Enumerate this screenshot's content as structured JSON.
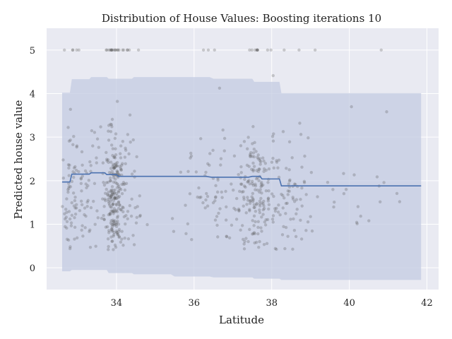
{
  "chart_data": {
    "type": "scatter",
    "title": "Distribution of House Values: Boosting iterations 10",
    "xlabel": "Latitude",
    "ylabel": "Predicted house value",
    "xlim": [
      32.2,
      42.3
    ],
    "ylim": [
      -0.5,
      5.5
    ],
    "xticks": [
      34,
      36,
      38,
      40,
      42
    ],
    "yticks": [
      0,
      1,
      2,
      3,
      4,
      5
    ],
    "grid": true,
    "colors": {
      "background": "#e9eaf2",
      "grid": "#ffffff",
      "band": "#c3cbe2",
      "line": "#4c72b0",
      "points": "#555555"
    },
    "prediction_line": {
      "x": [
        32.6,
        32.8,
        32.85,
        33.3,
        33.35,
        33.7,
        33.75,
        34.0,
        34.05,
        35.4,
        36.3,
        36.45,
        37.4,
        37.5,
        37.7,
        37.75,
        38.2,
        38.25,
        41.85
      ],
      "y": [
        1.97,
        1.97,
        2.15,
        2.15,
        2.18,
        2.18,
        2.14,
        2.14,
        2.1,
        2.1,
        2.1,
        2.08,
        2.08,
        2.1,
        2.1,
        2.04,
        2.04,
        1.88,
        1.88
      ]
    },
    "interval_band": {
      "x": [
        32.6,
        32.8,
        32.85,
        33.3,
        33.35,
        33.75,
        33.8,
        34.4,
        34.45,
        35.4,
        35.5,
        36.4,
        36.5,
        37.5,
        37.55,
        38.2,
        38.25,
        41.85
      ],
      "lower": [
        -0.08,
        -0.08,
        -0.05,
        -0.05,
        -0.05,
        -0.05,
        -0.12,
        -0.12,
        -0.15,
        -0.15,
        -0.2,
        -0.2,
        -0.22,
        -0.22,
        -0.25,
        -0.25,
        -0.28,
        -0.28
      ],
      "upper": [
        4.02,
        4.02,
        4.33,
        4.33,
        4.38,
        4.38,
        4.34,
        4.34,
        4.38,
        4.38,
        4.38,
        4.38,
        4.34,
        4.34,
        4.27,
        4.27,
        4.01,
        4.01
      ]
    },
    "points_description_clusters": [
      {
        "lat": 32.8,
        "lat_sd": 0.12,
        "n": 60
      },
      {
        "lat": 33.2,
        "lat_sd": 0.25,
        "n": 60
      },
      {
        "lat": 33.9,
        "lat_sd": 0.12,
        "n": 220
      },
      {
        "lat": 34.2,
        "lat_sd": 0.25,
        "n": 80
      },
      {
        "lat": 36.5,
        "lat_sd": 0.6,
        "n": 90
      },
      {
        "lat": 37.6,
        "lat_sd": 0.25,
        "n": 180
      },
      {
        "lat": 38.5,
        "lat_sd": 0.3,
        "n": 80
      },
      {
        "lat": 40.0,
        "lat_sd": 0.9,
        "n": 30
      }
    ]
  }
}
